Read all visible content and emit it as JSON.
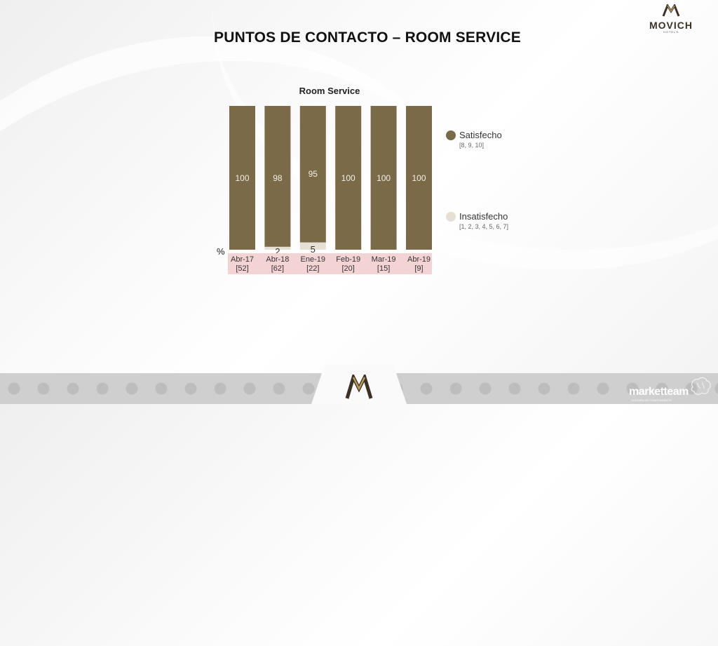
{
  "header": {
    "title": "PUNTOS DE CONTACTO – ROOM SERVICE",
    "brand": "MOVICH",
    "brand_sub": "HOTELS"
  },
  "footer": {
    "company": "marketteam",
    "company_sub": "CULTURA DE CONOCIMIENTO"
  },
  "icons": {
    "top_logo": "movich-m-logo-icon",
    "footer_logo": "movich-m-logo-icon",
    "footer_brain": "brain-icon"
  },
  "colors": {
    "satisfied": "#7b6a48",
    "dissatisfied": "#e6e0d4",
    "axis_band": "#f4d3d5"
  },
  "chart_data": {
    "type": "bar",
    "stacked": true,
    "title": "Room Service",
    "unit_label": "%",
    "ylim": [
      0,
      100
    ],
    "categories": [
      "Abr-17",
      "Abr-18",
      "Ene-19",
      "Feb-19",
      "Mar-19",
      "Abr-19"
    ],
    "sample_sizes": [
      "[52]",
      "[62]",
      "[22]",
      "[20]",
      "[15]",
      "[9]"
    ],
    "series": [
      {
        "name": "Satisfecho",
        "range": "[8, 9, 10]",
        "values": [
          100,
          98,
          95,
          100,
          100,
          100
        ],
        "color": "#7b6a48"
      },
      {
        "name": "Insatisfecho",
        "range": "[1, 2, 3, 4, 5, 6, 7]",
        "values": [
          0,
          2,
          5,
          0,
          0,
          0
        ],
        "color": "#e6e0d4"
      }
    ],
    "legend_position": "right",
    "grid": false
  }
}
